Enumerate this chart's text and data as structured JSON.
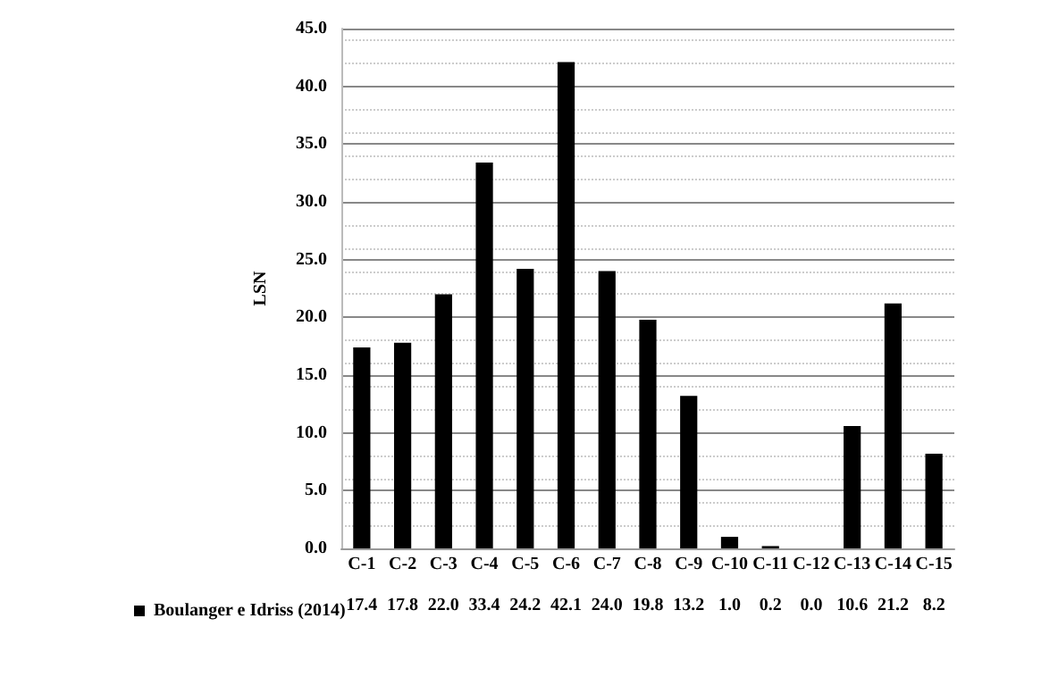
{
  "chart_data": {
    "type": "bar",
    "ylabel": "LSN",
    "categories": [
      "C-1",
      "C-2",
      "C-3",
      "C-4",
      "C-5",
      "C-6",
      "C-7",
      "C-8",
      "C-9",
      "C-10",
      "C-11",
      "C-12",
      "C-13",
      "C-14",
      "C-15"
    ],
    "series": [
      {
        "name": "Boulanger e Idriss (2014)",
        "color": "#000000",
        "values": [
          17.4,
          17.8,
          22.0,
          33.4,
          24.2,
          42.1,
          24.0,
          19.8,
          13.2,
          1.0,
          0.2,
          0.0,
          10.6,
          21.2,
          8.2
        ],
        "value_labels": [
          "17.4",
          "17.8",
          "22.0",
          "33.4",
          "24.2",
          "42.1",
          "24.0",
          "19.8",
          "13.2",
          "1.0",
          "0.2",
          "0.0",
          "10.6",
          "21.2",
          "8.2"
        ]
      }
    ],
    "ylim": [
      0,
      45
    ],
    "yticks": [
      {
        "value": 0,
        "label": "0.0"
      },
      {
        "value": 5,
        "label": "5.0"
      },
      {
        "value": 10,
        "label": "10.0"
      },
      {
        "value": 15,
        "label": "15.0"
      },
      {
        "value": 20,
        "label": "20.0"
      },
      {
        "value": 25,
        "label": "25.0"
      },
      {
        "value": 30,
        "label": "30.0"
      },
      {
        "value": 35,
        "label": "35.0"
      },
      {
        "value": 40,
        "label": "40.0"
      },
      {
        "value": 45,
        "label": "45.0"
      }
    ],
    "grid": "y",
    "legend": "bottom left"
  }
}
